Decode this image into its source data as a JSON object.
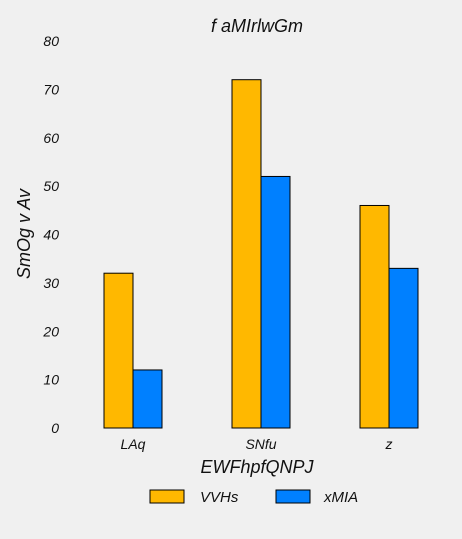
{
  "chart_data": {
    "type": "bar",
    "title": "f aMIrlwGm",
    "xlabel": "EWFhpfQNPJ",
    "ylabel": "SmOg v Av",
    "categories": [
      "LAq",
      "SNfu",
      "z"
    ],
    "series": [
      {
        "name": "VVHs",
        "values": [
          32,
          72,
          46
        ],
        "color": "#ffb800"
      },
      {
        "name": "xMIA",
        "values": [
          12,
          52,
          33
        ],
        "color": "#0080ff"
      }
    ],
    "ylim": [
      0,
      80
    ],
    "yticks": [
      0,
      10,
      20,
      30,
      40,
      50,
      60,
      70,
      80
    ],
    "grid": false,
    "legend_position": "bottom-center",
    "bar_edge_color": "#000000",
    "background": "#f0f0f0"
  }
}
